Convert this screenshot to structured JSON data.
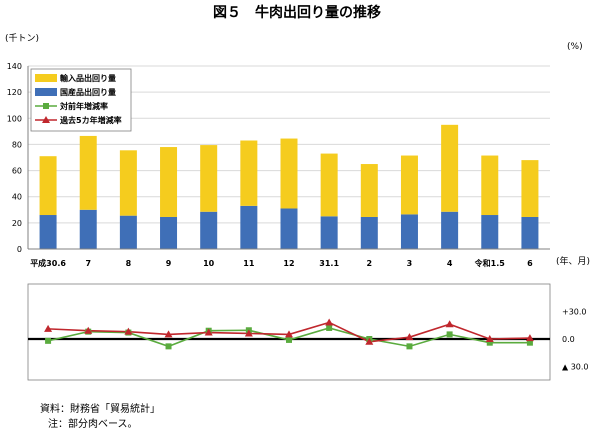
{
  "title": "図５　牛肉出回り量の推移",
  "unit_left": "(千トン)",
  "unit_right": "(%)",
  "x_unit": "(年、月)",
  "notes": {
    "source": "資料：財務省「貿易統計」",
    "note": "注：部分肉ベース。"
  },
  "colors": {
    "import": "#f5cc1e",
    "domestic": "#3f6fb7",
    "yoy": "#5aab3e",
    "five_year": "#c0272d"
  },
  "chart_data": {
    "type": "bar",
    "categories": [
      "平成30.6",
      "7",
      "8",
      "9",
      "10",
      "11",
      "12",
      "31.1",
      "2",
      "3",
      "4",
      "令和1.5",
      "6"
    ],
    "ylim": [
      0,
      140
    ],
    "yticks": [
      "0",
      "20",
      "40",
      "60",
      "80",
      "100",
      "120",
      "140"
    ],
    "series": [
      {
        "name": "国産品出回り量",
        "values": [
          26,
          30,
          25.5,
          24.5,
          28.5,
          33,
          31,
          25,
          24.5,
          26.5,
          28.5,
          26,
          24.5
        ]
      },
      {
        "name": "輸入品出回り量",
        "values": [
          45,
          56.5,
          50,
          53.5,
          51,
          50,
          53.5,
          48,
          40.5,
          45,
          66.5,
          45.5,
          43.5
        ]
      }
    ],
    "total_values": [
      71,
      86.5,
      75.5,
      78,
      79.5,
      83,
      84.5,
      73,
      65,
      71.5,
      95,
      71.5,
      68
    ],
    "lines": {
      "ylim": [
        -45,
        45
      ],
      "right_ticks": [
        "+30.0",
        "0.0",
        "▲ 30.0"
      ],
      "series": [
        {
          "name": "対前年増減率",
          "values": [
            -2,
            8,
            7,
            -8,
            9,
            9.5,
            -1,
            12,
            0,
            -8,
            5,
            -4,
            -4
          ]
        },
        {
          "name": "過去5カ年増減率",
          "values": [
            11,
            9,
            8,
            5,
            7,
            6,
            5,
            18,
            -3,
            2,
            16,
            0,
            1
          ]
        }
      ]
    }
  }
}
